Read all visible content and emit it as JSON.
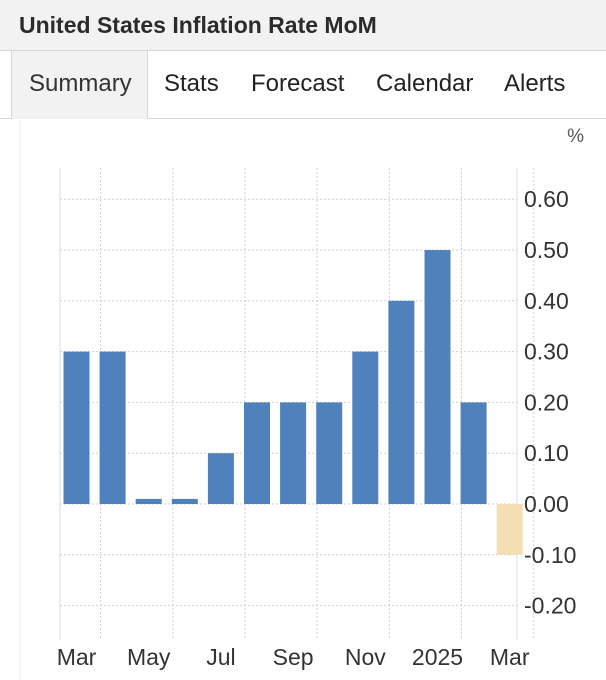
{
  "header": {
    "title": "United States Inflation Rate MoM"
  },
  "tabs": [
    {
      "label": "Summary",
      "active": true
    },
    {
      "label": "Stats",
      "active": false
    },
    {
      "label": "Forecast",
      "active": false
    },
    {
      "label": "Calendar",
      "active": false
    },
    {
      "label": "Alerts",
      "active": false
    }
  ],
  "colors": {
    "bar": "#4f81bd",
    "forecast_bar": "#f5deb3",
    "grid": "#cfcfcf"
  },
  "chart_data": {
    "type": "bar",
    "unit": "%",
    "grid": true,
    "ylim": [
      -0.27,
      0.67
    ],
    "yticks": [
      "0.60",
      "0.50",
      "0.40",
      "0.30",
      "0.20",
      "0.10",
      "0.00",
      "-0.10",
      "-0.20"
    ],
    "ytick_values": [
      0.6,
      0.5,
      0.4,
      0.3,
      0.2,
      0.1,
      0.0,
      -0.1,
      -0.2
    ],
    "xtick_labels": [
      "Mar",
      "May",
      "Jul",
      "Sep",
      "Nov",
      "2025",
      "Mar"
    ],
    "xtick_bar_index": [
      0,
      2,
      4,
      6,
      8,
      10,
      12
    ],
    "bars": [
      {
        "value": 0.3,
        "forecast": false
      },
      {
        "value": 0.3,
        "forecast": false
      },
      {
        "value": 0.01,
        "forecast": false
      },
      {
        "value": 0.01,
        "forecast": false
      },
      {
        "value": 0.1,
        "forecast": false
      },
      {
        "value": 0.2,
        "forecast": false
      },
      {
        "value": 0.2,
        "forecast": false
      },
      {
        "value": 0.2,
        "forecast": false
      },
      {
        "value": 0.3,
        "forecast": false
      },
      {
        "value": 0.4,
        "forecast": false
      },
      {
        "value": 0.5,
        "forecast": false
      },
      {
        "value": 0.2,
        "forecast": false
      },
      {
        "value": -0.1,
        "forecast": true
      }
    ]
  }
}
